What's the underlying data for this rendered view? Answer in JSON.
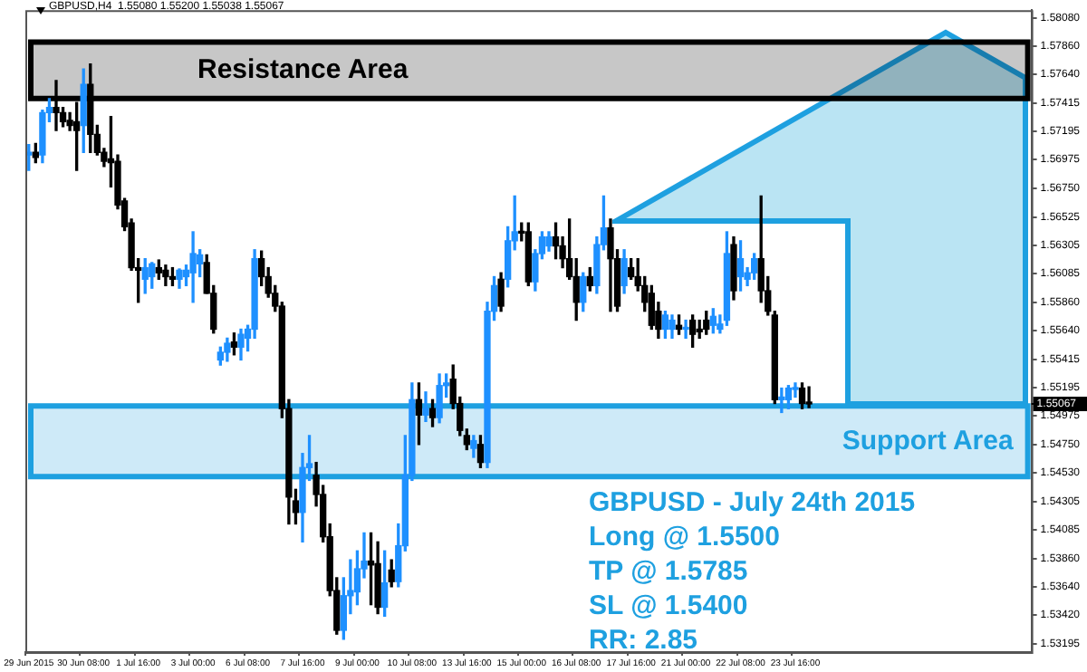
{
  "chart_data": {
    "type": "candlestick",
    "title": "GBPUSD,H4  1.55080 1.55200 1.55038 1.55067",
    "categories": [
      "29 Jun 2015",
      null,
      null,
      null,
      null,
      null,
      null,
      null,
      "30 Jun 08:00",
      null,
      null,
      null,
      null,
      null,
      null,
      null,
      "1 Jul 16:00",
      null,
      null,
      null,
      null,
      null,
      null,
      null,
      "3 Jul 00:00",
      null,
      null,
      null,
      null,
      null,
      null,
      null,
      "6 Jul 08:00",
      null,
      null,
      null,
      null,
      null,
      null,
      null,
      "7 Jul 16:00",
      null,
      null,
      null,
      null,
      null,
      null,
      null,
      "9 Jul 00:00",
      null,
      null,
      null,
      null,
      null,
      null,
      null,
      "10 Jul 08:00",
      null,
      null,
      null,
      null,
      null,
      null,
      null,
      "13 Jul 16:00",
      null,
      null,
      null,
      null,
      null,
      null,
      null,
      "15 Jul 00:00",
      null,
      null,
      null,
      null,
      null,
      null,
      null,
      "16 Jul 08:00",
      null,
      null,
      null,
      null,
      null,
      null,
      null,
      "17 Jul 16:00",
      null,
      null,
      null,
      null,
      null,
      null,
      null,
      "21 Jul 00:00",
      null,
      null,
      null,
      null,
      null,
      null,
      null,
      "22 Jul 08:00",
      null,
      null,
      null,
      null,
      null,
      null,
      null,
      "23 Jul 16:00",
      null,
      null,
      null,
      null,
      null,
      null,
      null,
      null,
      null,
      null,
      null,
      null,
      null,
      null,
      null,
      null,
      null,
      null,
      null,
      null,
      null,
      null,
      null,
      null,
      null,
      null,
      null,
      null,
      null,
      null,
      null,
      null,
      null,
      null
    ],
    "ohlc": [
      [
        1.5701,
        1.5709,
        1.5689,
        1.5703
      ],
      [
        1.5703,
        1.571,
        1.5695,
        1.5699
      ],
      [
        1.5701,
        1.5736,
        1.5695,
        1.5734
      ],
      [
        1.5734,
        1.5745,
        1.5727,
        1.5738
      ],
      [
        1.5738,
        1.5759,
        1.572,
        1.5734
      ],
      [
        1.5734,
        1.5738,
        1.5723,
        1.5727
      ],
      [
        1.5728,
        1.5734,
        1.572,
        1.5724
      ],
      [
        1.5727,
        1.5742,
        1.5689,
        1.572
      ],
      [
        1.5724,
        1.5768,
        1.5703,
        1.5756
      ],
      [
        1.5756,
        1.5772,
        1.5703,
        1.5717
      ],
      [
        1.5717,
        1.5724,
        1.5701,
        1.5703
      ],
      [
        1.5703,
        1.5706,
        1.5692,
        1.5696
      ],
      [
        1.5698,
        1.5731,
        1.5676,
        1.5695
      ],
      [
        1.5696,
        1.5701,
        1.5659,
        1.5662
      ],
      [
        1.5665,
        1.5667,
        1.5642,
        1.5645
      ],
      [
        1.5648,
        1.5651,
        1.5611,
        1.5613
      ],
      [
        1.5613,
        1.562,
        1.5586,
        1.5611
      ],
      [
        1.5604,
        1.562,
        1.5593,
        1.5613
      ],
      [
        1.5606,
        1.5617,
        1.5597,
        1.5616
      ],
      [
        1.5613,
        1.5619,
        1.5604,
        1.5609
      ],
      [
        1.5611,
        1.5615,
        1.5599,
        1.5606
      ],
      [
        1.5606,
        1.5613,
        1.5599,
        1.5604
      ],
      [
        1.5604,
        1.5612,
        1.5597,
        1.5611
      ],
      [
        1.5606,
        1.5615,
        1.5599,
        1.5611
      ],
      [
        1.5609,
        1.5641,
        1.5586,
        1.5624
      ],
      [
        1.5616,
        1.5627,
        1.5606,
        1.5623
      ],
      [
        1.5617,
        1.5623,
        1.5593,
        1.5593
      ],
      [
        1.5593,
        1.5599,
        1.5562,
        1.5565
      ],
      [
        1.5541,
        1.5551,
        1.5537,
        1.5547
      ],
      [
        1.5547,
        1.5558,
        1.554,
        1.5554
      ],
      [
        1.5555,
        1.5562,
        1.5545,
        1.5551
      ],
      [
        1.5551,
        1.5565,
        1.5541,
        1.5561
      ],
      [
        1.5558,
        1.5568,
        1.5548,
        1.5565
      ],
      [
        1.5565,
        1.5627,
        1.5558,
        1.562
      ],
      [
        1.562,
        1.5626,
        1.5599,
        1.5606
      ],
      [
        1.5606,
        1.5613,
        1.559,
        1.5593
      ],
      [
        1.5593,
        1.5599,
        1.5579,
        1.5583
      ],
      [
        1.5583,
        1.5586,
        1.5496,
        1.5503
      ],
      [
        1.5503,
        1.551,
        1.5413,
        1.5434
      ],
      [
        1.5431,
        1.544,
        1.5413,
        1.5422
      ],
      [
        1.5422,
        1.5468,
        1.5399,
        1.5457
      ],
      [
        1.5457,
        1.5482,
        1.5447,
        1.546
      ],
      [
        1.5451,
        1.5461,
        1.5427,
        1.5436
      ],
      [
        1.5436,
        1.5443,
        1.5399,
        1.5403
      ],
      [
        1.5403,
        1.5413,
        1.5357,
        1.5361
      ],
      [
        1.5361,
        1.5371,
        1.5327,
        1.533
      ],
      [
        1.533,
        1.5371,
        1.5323,
        1.5357
      ],
      [
        1.5357,
        1.5385,
        1.5343,
        1.5361
      ],
      [
        1.536,
        1.5392,
        1.535,
        1.5378
      ],
      [
        1.5378,
        1.5406,
        1.5371,
        1.5384
      ],
      [
        1.5384,
        1.5406,
        1.535,
        1.5381
      ],
      [
        1.5382,
        1.5399,
        1.5343,
        1.5348
      ],
      [
        1.5348,
        1.5392,
        1.5341,
        1.5367
      ],
      [
        1.5377,
        1.5385,
        1.5364,
        1.5368
      ],
      [
        1.5368,
        1.5413,
        1.5364,
        1.5396
      ],
      [
        1.5396,
        1.5482,
        1.5392,
        1.5451
      ],
      [
        1.5451,
        1.5523,
        1.5447,
        1.551
      ],
      [
        1.551,
        1.5523,
        1.5475,
        1.5498
      ],
      [
        1.5498,
        1.5516,
        1.5493,
        1.5503
      ],
      [
        1.5503,
        1.551,
        1.5489,
        1.5496
      ],
      [
        1.5496,
        1.553,
        1.5492,
        1.5521
      ],
      [
        1.5521,
        1.553,
        1.5512,
        1.5523
      ],
      [
        1.5526,
        1.5537,
        1.5503,
        1.5507
      ],
      [
        1.5507,
        1.5512,
        1.5482,
        1.5486
      ],
      [
        1.5482,
        1.5487,
        1.5471,
        1.5475
      ],
      [
        1.5472,
        1.5482,
        1.5465,
        1.5478
      ],
      [
        1.5475,
        1.5482,
        1.5457,
        1.5461
      ],
      [
        1.5461,
        1.5586,
        1.5457,
        1.5579
      ],
      [
        1.5579,
        1.5606,
        1.5572,
        1.5599
      ],
      [
        1.5604,
        1.5609,
        1.5579,
        1.5583
      ],
      [
        1.5604,
        1.5645,
        1.5598,
        1.5634
      ],
      [
        1.5634,
        1.5669,
        1.5627,
        1.5641
      ],
      [
        1.5641,
        1.5648,
        1.5634,
        1.564
      ],
      [
        1.5641,
        1.5648,
        1.5599,
        1.5602
      ],
      [
        1.5602,
        1.5627,
        1.5595,
        1.5624
      ],
      [
        1.5624,
        1.5641,
        1.562,
        1.5637
      ],
      [
        1.563,
        1.5641,
        1.5626,
        1.5637
      ],
      [
        1.5637,
        1.5648,
        1.562,
        1.563
      ],
      [
        1.563,
        1.5637,
        1.5613,
        1.562
      ],
      [
        1.562,
        1.5651,
        1.5604,
        1.5606
      ],
      [
        1.5606,
        1.562,
        1.5572,
        1.5586
      ],
      [
        1.5586,
        1.5609,
        1.5579,
        1.5606
      ],
      [
        1.5606,
        1.5613,
        1.5595,
        1.5599
      ],
      [
        1.5599,
        1.5637,
        1.5593,
        1.5631
      ],
      [
        1.5631,
        1.5669,
        1.5627,
        1.5644
      ],
      [
        1.5644,
        1.5651,
        1.5579,
        1.562
      ],
      [
        1.562,
        1.5627,
        1.5579,
        1.5583
      ],
      [
        1.5599,
        1.5627,
        1.5593,
        1.562
      ],
      [
        1.5613,
        1.562,
        1.5604,
        1.5606
      ],
      [
        1.5606,
        1.562,
        1.5595,
        1.5599
      ],
      [
        1.5599,
        1.5606,
        1.5579,
        1.5586
      ],
      [
        1.5593,
        1.5599,
        1.5565,
        1.5568
      ],
      [
        1.5579,
        1.5586,
        1.5558,
        1.5565
      ],
      [
        1.5565,
        1.5579,
        1.5558,
        1.5576
      ],
      [
        1.5565,
        1.5576,
        1.5558,
        1.5572
      ],
      [
        1.5568,
        1.5576,
        1.5561,
        1.5565
      ],
      [
        1.5565,
        1.5572,
        1.5558,
        1.5566
      ],
      [
        1.5572,
        1.5576,
        1.5551,
        1.5561
      ],
      [
        1.5565,
        1.5572,
        1.5558,
        1.5563
      ],
      [
        1.5572,
        1.5579,
        1.5561,
        1.5565
      ],
      [
        1.5568,
        1.5581,
        1.5562,
        1.5575
      ],
      [
        1.5565,
        1.5576,
        1.5562,
        1.5569
      ],
      [
        1.5572,
        1.5641,
        1.5568,
        1.5624
      ],
      [
        1.5631,
        1.5637,
        1.5588,
        1.5595
      ],
      [
        1.5606,
        1.5634,
        1.5595,
        1.562
      ],
      [
        1.5604,
        1.5613,
        1.5599,
        1.5609
      ],
      [
        1.5609,
        1.5624,
        1.5604,
        1.562
      ],
      [
        1.562,
        1.5669,
        1.5586,
        1.5595
      ],
      [
        1.5595,
        1.5606,
        1.5576,
        1.5579
      ],
      [
        1.5576,
        1.5579,
        1.5507,
        1.551
      ],
      [
        1.551,
        1.5519,
        1.55,
        1.5512
      ],
      [
        1.551,
        1.5521,
        1.5503,
        1.5519
      ],
      [
        1.5518,
        1.5523,
        1.5512,
        1.5519
      ],
      [
        1.5519,
        1.5523,
        1.5503,
        1.5507
      ],
      [
        1.5508,
        1.552,
        1.55038,
        1.55067
      ],
      null,
      null,
      null,
      null,
      null,
      null,
      null,
      null,
      null,
      null,
      null,
      null,
      null,
      null,
      null,
      null,
      null,
      null,
      null,
      null,
      null,
      null,
      null,
      null,
      null,
      null,
      null,
      null,
      null,
      null,
      null,
      null
    ],
    "colors": [
      "#1e90ff",
      "#000000",
      "#1e90ff",
      "#1e90ff",
      "#000000",
      "#000000",
      "#000000",
      "#000000",
      "#1e90ff",
      "#000000",
      "#000000",
      "#000000",
      "#000000",
      "#000000",
      "#000000",
      "#000000",
      "#000000",
      "#1e90ff",
      "#1e90ff",
      "#000000",
      "#000000",
      "#000000",
      "#1e90ff",
      "#1e90ff",
      "#1e90ff",
      "#1e90ff",
      "#000000",
      "#000000",
      "#1e90ff",
      "#1e90ff",
      "#000000",
      "#1e90ff",
      "#1e90ff",
      "#1e90ff",
      "#000000",
      "#000000",
      "#000000",
      "#000000",
      "#000000",
      "#000000",
      "#1e90ff",
      "#1e90ff",
      "#000000",
      "#000000",
      "#000000",
      "#000000",
      "#1e90ff",
      "#1e90ff",
      "#1e90ff",
      "#1e90ff",
      "#000000",
      "#000000",
      "#1e90ff",
      "#000000",
      "#1e90ff",
      "#1e90ff",
      "#1e90ff",
      "#000000",
      "#1e90ff",
      "#000000",
      "#1e90ff",
      "#1e90ff",
      "#000000",
      "#000000",
      "#000000",
      "#1e90ff",
      "#000000",
      "#1e90ff",
      "#1e90ff",
      "#000000",
      "#1e90ff",
      "#1e90ff",
      "#000000",
      "#000000",
      "#1e90ff",
      "#1e90ff",
      "#1e90ff",
      "#000000",
      "#000000",
      "#000000",
      "#000000",
      "#1e90ff",
      "#000000",
      "#1e90ff",
      "#1e90ff",
      "#000000",
      "#000000",
      "#1e90ff",
      "#000000",
      "#000000",
      "#000000",
      "#000000",
      "#000000",
      "#1e90ff",
      "#1e90ff",
      "#000000",
      "#1e90ff",
      "#000000",
      "#000000",
      "#000000",
      "#1e90ff",
      "#1e90ff",
      "#1e90ff",
      "#000000",
      "#1e90ff",
      "#1e90ff",
      "#1e90ff",
      "#000000",
      "#000000",
      "#000000",
      "#1e90ff",
      "#1e90ff",
      "#1e90ff",
      "#000000",
      "#000000",
      null,
      null,
      null,
      null,
      null,
      null,
      null,
      null,
      null,
      null,
      null,
      null,
      null,
      null,
      null,
      null,
      null,
      null,
      null,
      null,
      null,
      null,
      null,
      null,
      null,
      null,
      null,
      null,
      null,
      null,
      null,
      null
    ],
    "ylim": [
      1.5313,
      1.5814
    ],
    "yticks": [
      {
        "value": 1.5808,
        "label": "1.58080"
      },
      {
        "value": 1.5786,
        "label": "1.57860"
      },
      {
        "value": 1.5764,
        "label": "1.57640"
      },
      {
        "value": 1.57415,
        "label": "1.57415"
      },
      {
        "value": 1.57195,
        "label": "1.57195"
      },
      {
        "value": 1.56975,
        "label": "1.56975"
      },
      {
        "value": 1.5675,
        "label": "1.56750"
      },
      {
        "value": 1.56525,
        "label": "1.56525"
      },
      {
        "value": 1.56305,
        "label": "1.56305"
      },
      {
        "value": 1.56085,
        "label": "1.56085"
      },
      {
        "value": 1.5586,
        "label": "1.55860"
      },
      {
        "value": 1.5564,
        "label": "1.55640"
      },
      {
        "value": 1.55415,
        "label": "1.55415"
      },
      {
        "value": 1.55195,
        "label": "1.55195"
      },
      {
        "value": 1.54975,
        "label": "1.54975"
      },
      {
        "value": 1.5475,
        "label": "1.54750"
      },
      {
        "value": 1.5453,
        "label": "1.54530"
      },
      {
        "value": 1.54305,
        "label": "1.54305"
      },
      {
        "value": 1.54085,
        "label": "1.54085"
      },
      {
        "value": 1.5386,
        "label": "1.53860"
      },
      {
        "value": 1.5364,
        "label": "1.53640"
      },
      {
        "value": 1.5342,
        "label": "1.53420"
      },
      {
        "value": 1.53195,
        "label": "1.53195"
      }
    ],
    "bands": [
      {
        "axis": "y",
        "from": 1.5745,
        "to": 1.5789,
        "label": "Resistance Area",
        "color": "#000000"
      },
      {
        "axis": "y",
        "from": 1.545,
        "to": 1.5505,
        "label": "Support Area",
        "color": "#1ea0e0"
      }
    ],
    "ref_lines": [
      {
        "axis": "y",
        "value": 1.55067,
        "label": "1.55067"
      }
    ],
    "annotations": [
      "GBPUSD - July 24th 2015",
      "Long @ 1.5500",
      "TP @ 1.5785",
      "SL @ 1.5400",
      "RR: 2.85"
    ]
  }
}
